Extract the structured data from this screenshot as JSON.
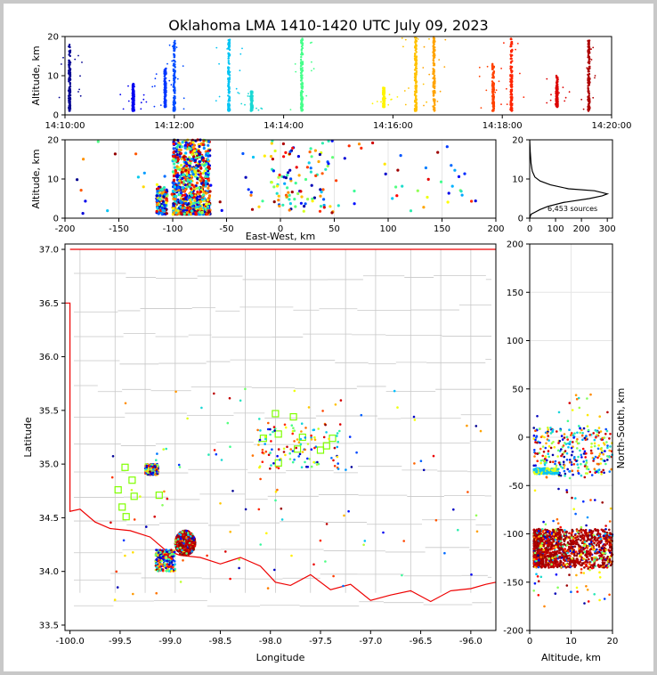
{
  "chart_data": [
    {
      "type": "scatter",
      "panel": "time-height",
      "title": "Oklahoma LMA 1410-1420 UTC July 09, 2023",
      "xlabel": "",
      "ylabel": "Altitude, km",
      "xlim": [
        "14:10:00",
        "14:20:00"
      ],
      "ylim": [
        0,
        20
      ],
      "xticks": [
        "14:10:00",
        "14:12:00",
        "14:14:00",
        "14:16:00",
        "14:18:00",
        "14:20:00"
      ],
      "yticks": [
        0,
        10,
        20
      ],
      "color_by": "time",
      "colormap": [
        "#00008b",
        "#0000ff",
        "#00bfff",
        "#40ff90",
        "#ffff00",
        "#ff8000",
        "#ff0000",
        "#8b0000"
      ],
      "flashes": [
        {
          "time": "14:10:05",
          "ymin": 1,
          "ymax": 18
        },
        {
          "time": "14:11:15",
          "ymin": 1,
          "ymax": 8
        },
        {
          "time": "14:11:50",
          "ymin": 2,
          "ymax": 12
        },
        {
          "time": "14:12:00",
          "ymin": 1,
          "ymax": 19
        },
        {
          "time": "14:13:00",
          "ymin": 1,
          "ymax": 20
        },
        {
          "time": "14:13:25",
          "ymin": 1,
          "ymax": 6
        },
        {
          "time": "14:14:20",
          "ymin": 1,
          "ymax": 20
        },
        {
          "time": "14:15:50",
          "ymin": 2,
          "ymax": 7
        },
        {
          "time": "14:16:25",
          "ymin": 1,
          "ymax": 20
        },
        {
          "time": "14:16:45",
          "ymin": 1,
          "ymax": 20
        },
        {
          "time": "14:17:50",
          "ymin": 1,
          "ymax": 13
        },
        {
          "time": "14:18:10",
          "ymin": 1,
          "ymax": 20
        },
        {
          "time": "14:19:00",
          "ymin": 2,
          "ymax": 10
        },
        {
          "time": "14:19:35",
          "ymin": 1,
          "ymax": 19
        }
      ]
    },
    {
      "type": "scatter",
      "panel": "east-west-altitude",
      "xlabel": "East-West, km",
      "ylabel": "Altitude, km",
      "xlim": [
        -200,
        200
      ],
      "ylim": [
        0,
        20
      ],
      "xticks": [
        -200,
        -150,
        -100,
        -50,
        0,
        50,
        100,
        150,
        200
      ],
      "yticks": [
        0,
        10,
        20
      ],
      "clusters": [
        {
          "name": "main",
          "x": [
            -100,
            -65
          ],
          "y": [
            1,
            20
          ],
          "density": "dense"
        },
        {
          "name": "west",
          "x": [
            -115,
            -105
          ],
          "y": [
            1,
            8
          ],
          "density": "medium"
        },
        {
          "name": "central",
          "x": [
            -10,
            50
          ],
          "y": [
            1,
            20
          ],
          "density": "sparse"
        },
        {
          "name": "scatter",
          "x": [
            -190,
            190
          ],
          "y": [
            1,
            20
          ],
          "density": "sparse"
        }
      ]
    },
    {
      "type": "line",
      "panel": "altitude-histogram",
      "annotation": "6,453 sources",
      "xlim": [
        0,
        320
      ],
      "ylim": [
        0,
        20
      ],
      "xticks": [
        0,
        100,
        200,
        300
      ],
      "yticks": [
        0,
        10,
        20
      ],
      "x": [
        0,
        5,
        20,
        40,
        70,
        130,
        230,
        280,
        300,
        250,
        150,
        80,
        40,
        20,
        10,
        5,
        2,
        0
      ],
      "y": [
        0,
        1,
        1.5,
        2.2,
        3,
        4,
        5,
        5.7,
        6.2,
        7,
        7.5,
        8.5,
        9.5,
        10.5,
        12,
        14,
        17,
        20
      ]
    },
    {
      "type": "scatter",
      "panel": "plan-view",
      "xlabel": "Longitude",
      "ylabel": "Latitude",
      "xlim": [
        -100.05,
        -95.75
      ],
      "ylim": [
        33.45,
        37.05
      ],
      "xticks": [
        -100.0,
        -99.5,
        -99.0,
        -98.5,
        -98.0,
        -97.5,
        -97.0,
        -96.5,
        -96.0
      ],
      "yticks": [
        33.5,
        34.0,
        34.5,
        35.0,
        35.5,
        36.0,
        36.5,
        37.0
      ],
      "stations": [
        {
          "lon": -99.45,
          "lat": 34.97
        },
        {
          "lon": -99.38,
          "lat": 34.85
        },
        {
          "lon": -99.52,
          "lat": 34.76
        },
        {
          "lon": -99.36,
          "lat": 34.7
        },
        {
          "lon": -99.48,
          "lat": 34.6
        },
        {
          "lon": -99.44,
          "lat": 34.51
        },
        {
          "lon": -99.11,
          "lat": 34.71
        },
        {
          "lon": -98.07,
          "lat": 35.24
        },
        {
          "lon": -97.95,
          "lat": 35.47
        },
        {
          "lon": -97.92,
          "lat": 35.28
        },
        {
          "lon": -97.77,
          "lat": 35.44
        },
        {
          "lon": -97.68,
          "lat": 35.25
        },
        {
          "lon": -97.73,
          "lat": 35.14
        },
        {
          "lon": -97.92,
          "lat": 35.01
        },
        {
          "lon": -97.5,
          "lat": 35.13
        },
        {
          "lon": -97.44,
          "lat": 35.17
        },
        {
          "lon": -97.38,
          "lat": 35.24
        }
      ],
      "clusters": [
        {
          "name": "main",
          "lon": [
            -98.95,
            -98.75
          ],
          "lat": [
            34.15,
            34.38
          ],
          "density": "dense"
        },
        {
          "name": "southwest",
          "lon": [
            -99.15,
            -98.95
          ],
          "lat": [
            34.0,
            34.2
          ],
          "density": "medium"
        },
        {
          "name": "west",
          "lon": [
            -99.25,
            -99.12
          ],
          "lat": [
            34.9,
            35.0
          ],
          "density": "medium"
        },
        {
          "name": "central",
          "lon": [
            -98.15,
            -97.3
          ],
          "lat": [
            34.95,
            35.4
          ],
          "density": "sparse"
        },
        {
          "name": "scatter",
          "lon": [
            -99.6,
            -95.9
          ],
          "lat": [
            33.7,
            35.7
          ],
          "density": "sparse"
        }
      ]
    },
    {
      "type": "scatter",
      "panel": "altitude-north-south",
      "xlabel": "Altitude, km",
      "ylabel": "North-South, km",
      "xlim": [
        0,
        20
      ],
      "ylim": [
        -200,
        200
      ],
      "xticks": [
        0,
        10,
        20
      ],
      "yticks": [
        -200,
        -150,
        -100,
        -50,
        0,
        50,
        100,
        150,
        200
      ],
      "clusters": [
        {
          "name": "main",
          "x": [
            1,
            20
          ],
          "y": [
            -135,
            -95
          ],
          "density": "dense"
        },
        {
          "name": "north",
          "x": [
            1,
            20
          ],
          "y": [
            -40,
            10
          ],
          "density": "medium"
        },
        {
          "name": "west-band",
          "x": [
            1,
            7
          ],
          "y": [
            -38,
            -32
          ],
          "density": "medium"
        },
        {
          "name": "scatter",
          "x": [
            1,
            20
          ],
          "y": [
            -175,
            45
          ],
          "density": "sparse"
        }
      ]
    }
  ]
}
